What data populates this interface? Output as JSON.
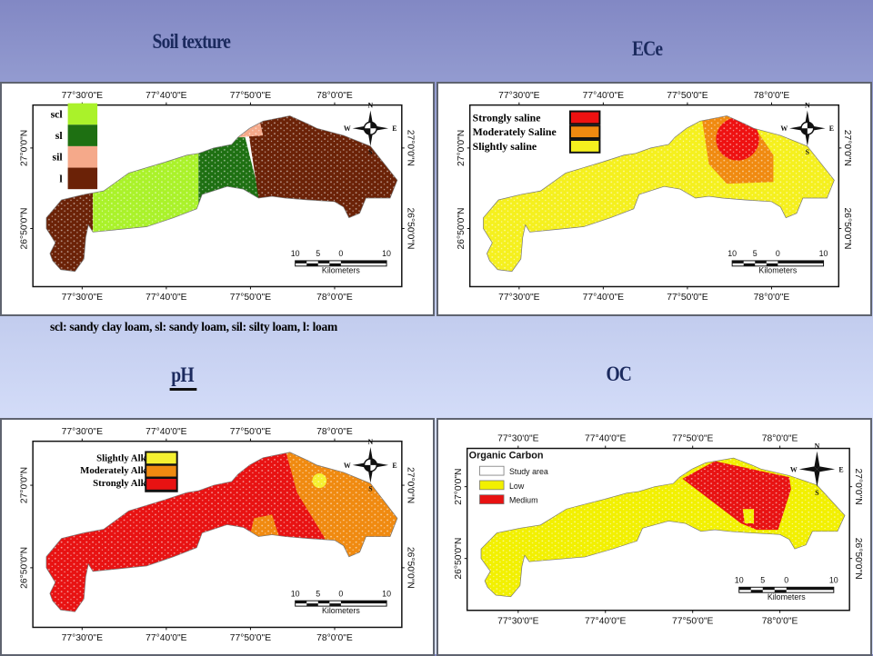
{
  "titles": {
    "soil_texture": "Soil texture",
    "ece": "ECe",
    "ph": "pH",
    "oc": "OC"
  },
  "caption": "scl: sandy clay loam, sl: sandy loam, sil: silty loam, l: loam",
  "map_common": {
    "x_ticks": [
      "77°30'0\"E",
      "77°40'0\"E",
      "77°50'0\"E",
      "78°0'0\"E"
    ],
    "y_ticks": [
      "27°0'0\"N",
      "26°50'0\"N"
    ],
    "scale_labels": [
      "10",
      "5",
      "0",
      "10"
    ],
    "scale_unit": "Kilometers",
    "compass": {
      "n": "N",
      "s": "S",
      "e": "E",
      "w": "W"
    }
  },
  "panels": [
    {
      "id": "soil-texture",
      "legend_title": "",
      "legend": [
        {
          "label": "scl",
          "color": "#aaf22a"
        },
        {
          "label": "sl",
          "color": "#1e7012"
        },
        {
          "label": "sil",
          "color": "#f5a98a"
        },
        {
          "label": "l",
          "color": "#6b2207"
        }
      ]
    },
    {
      "id": "ece",
      "legend_title": "",
      "legend": [
        {
          "label": "Strongly saline",
          "color": "#ee1111"
        },
        {
          "label": "Moderately Saline",
          "color": "#f08a10"
        },
        {
          "label": "Slightly saline",
          "color": "#f5f01e"
        }
      ]
    },
    {
      "id": "ph",
      "legend_title": "",
      "legend": [
        {
          "label": "Slightly Alkaline",
          "color": "#f5f030"
        },
        {
          "label": "Moderately Alkaline",
          "color": "#f08a10"
        },
        {
          "label": "Strongly Alkaline",
          "color": "#e81212"
        }
      ]
    },
    {
      "id": "oc",
      "legend_title": "Organic Carbon",
      "legend": [
        {
          "label": "Study area",
          "color": "#ffffff"
        },
        {
          "label": "Low",
          "color": "#f2f000"
        },
        {
          "label": "Medium",
          "color": "#e81212"
        }
      ]
    }
  ]
}
